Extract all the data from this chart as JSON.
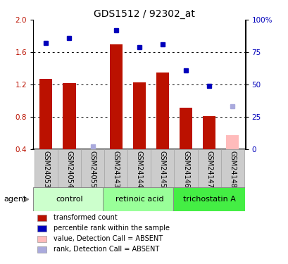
{
  "title": "GDS1512 / 92302_at",
  "samples": [
    "GSM24053",
    "GSM24054",
    "GSM24055",
    "GSM24143",
    "GSM24144",
    "GSM24145",
    "GSM24146",
    "GSM24147",
    "GSM24148"
  ],
  "bar_values": [
    1.27,
    1.22,
    null,
    1.7,
    1.23,
    1.35,
    0.91,
    0.81,
    null
  ],
  "bar_absent_values": [
    null,
    null,
    null,
    null,
    null,
    null,
    null,
    null,
    0.57
  ],
  "rank_values": [
    82,
    86,
    null,
    92,
    79,
    81,
    61,
    49,
    null
  ],
  "rank_absent_values": [
    null,
    null,
    2,
    null,
    null,
    null,
    null,
    null,
    33
  ],
  "bar_color": "#bb1100",
  "bar_absent_color": "#ffbbbb",
  "rank_color": "#0000bb",
  "rank_absent_color": "#aaaadd",
  "ylim_left": [
    0.4,
    2.0
  ],
  "ylim_right": [
    0,
    100
  ],
  "yticks_left": [
    0.4,
    0.8,
    1.2,
    1.6,
    2.0
  ],
  "ytick_labels_right": [
    "0",
    "25",
    "50",
    "75",
    "100%"
  ],
  "yticks_right": [
    0,
    25,
    50,
    75,
    100
  ],
  "groups": [
    {
      "label": "control",
      "start": 0,
      "end": 2,
      "color": "#ccffcc"
    },
    {
      "label": "retinoic acid",
      "start": 3,
      "end": 5,
      "color": "#99ff99"
    },
    {
      "label": "trichostatin A",
      "start": 6,
      "end": 8,
      "color": "#44ee44"
    }
  ],
  "agent_label": "agent",
  "legend_items": [
    {
      "label": "transformed count",
      "color": "#bb1100"
    },
    {
      "label": "percentile rank within the sample",
      "color": "#0000bb"
    },
    {
      "label": "value, Detection Call = ABSENT",
      "color": "#ffbbbb"
    },
    {
      "label": "rank, Detection Call = ABSENT",
      "color": "#aaaadd"
    }
  ],
  "sample_box_color": "#cccccc",
  "sample_box_edge": "#aaaaaa"
}
